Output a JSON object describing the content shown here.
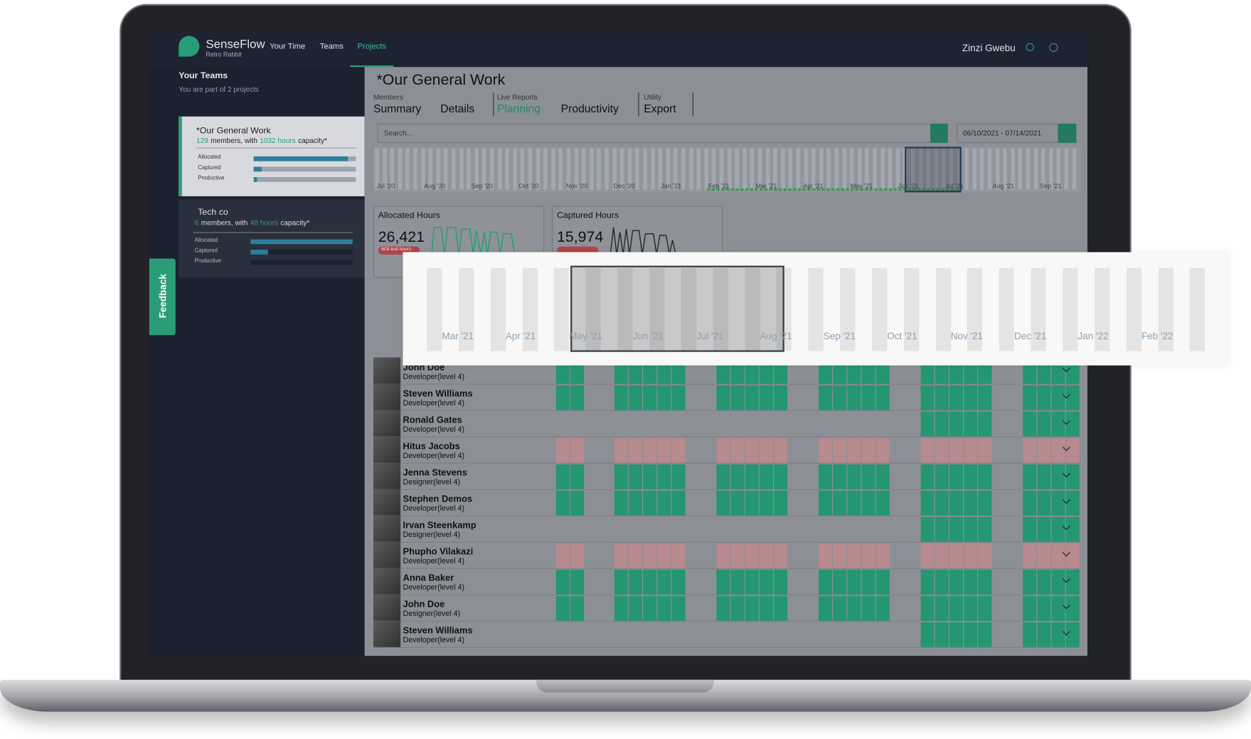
{
  "nav": {
    "brand": "SenseFlow",
    "sub": "Retro Rabbit",
    "links": [
      "Your Time",
      "Teams",
      "Projects"
    ],
    "user": "Zinzi Gwebu"
  },
  "sidebar": {
    "title": "Your Teams",
    "subtitle": "You are part of 2 projects",
    "bar_labels": [
      "Allocated",
      "Captured",
      "Productive"
    ],
    "teams": [
      {
        "name": "*Our General Work",
        "members": "129",
        "mid": "members, with",
        "hours": "1032 hours",
        "end": "capacity*"
      },
      {
        "name": "Tech co",
        "members": "6",
        "mid": "members, with",
        "hours": "48 hours",
        "end": "capacity*"
      }
    ],
    "feedback": "Feedback"
  },
  "main": {
    "title": "*Our General Work",
    "tab_groups": [
      {
        "label": "Members",
        "tabs": [
          "Summary",
          "Details"
        ]
      },
      {
        "label": "Live Reports",
        "tabs": [
          "Planning",
          "Productivity"
        ]
      },
      {
        "label": "Utility",
        "tabs": [
          "Export"
        ]
      }
    ],
    "search": "Search...",
    "date_range": "06/10/2021 - 07/14/2021",
    "timeline": [
      "Jul '20",
      "Aug '20",
      "Sep '20",
      "Oct '20",
      "Nov '20",
      "Dec '20",
      "Jan '21",
      "Feb '21",
      "Mar '21",
      "Apr '21",
      "May '21",
      "Jun '21",
      "Jul '21",
      "Aug '21",
      "Sep '21"
    ],
    "cards": [
      {
        "title": "Allocated Hours",
        "value": "26,421",
        "badge": "603 lost hours"
      },
      {
        "title": "Captured Hours",
        "value": "15,974"
      }
    ],
    "people": [
      {
        "name": "John Doe",
        "role": "Developer(level 4)"
      },
      {
        "name": "Steven Williams",
        "role": "Developer(level 4)"
      },
      {
        "name": "Ronald Gates",
        "role": "Developer(level 4)"
      },
      {
        "name": "Hitus Jacobs",
        "role": "Developer(level 4)"
      },
      {
        "name": "Jenna Stevens",
        "role": "Designer(level 4)"
      },
      {
        "name": "Stephen Demos",
        "role": "Developer(level 4)"
      },
      {
        "name": "Irvan Steenkamp",
        "role": "Designer(level 4)"
      },
      {
        "name": "Phupho Vilakazi",
        "role": "Developer(level 4)"
      },
      {
        "name": "Anna Baker",
        "role": "Developer(level 4)"
      },
      {
        "name": "John Doe",
        "role": "Designer(level 4)"
      },
      {
        "name": "Steven Williams",
        "role": "Developer(level 4)"
      }
    ]
  },
  "zoom": {
    "months": [
      "Mar '21",
      "Apr '21",
      "May '21",
      "Jun '21",
      "Jul '21",
      "Aug '21",
      "Sep '21",
      "Oct '21",
      "Nov '21",
      "Dec '21",
      "Jan '22",
      "Feb '22"
    ]
  }
}
